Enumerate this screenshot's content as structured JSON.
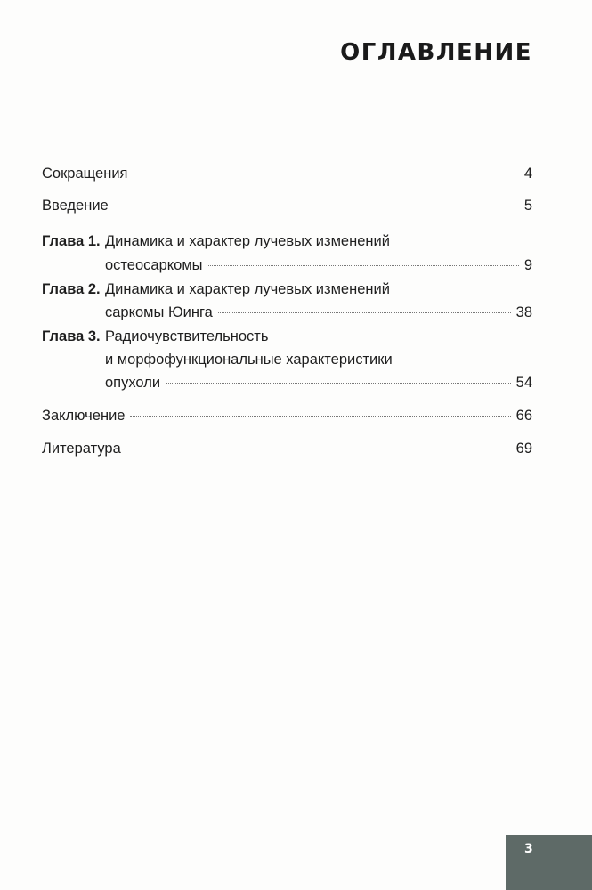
{
  "title": "ОГЛАВЛЕНИЕ",
  "entries": {
    "abbr": {
      "text": "Сокращения",
      "page": "4"
    },
    "intro": {
      "text": "Введение",
      "page": "5"
    },
    "ch1": {
      "label": "Глава 1.",
      "line1": "Динамика и характер лучевых изменений",
      "line2": "остеосаркомы",
      "page": "9"
    },
    "ch2": {
      "label": "Глава 2.",
      "line1": "Динамика и характер лучевых изменений",
      "line2": "саркомы Юинга",
      "page": "38"
    },
    "ch3": {
      "label": "Глава 3.",
      "line1": "Радиочувствительность",
      "line2": "и морфофункциональные характеристики",
      "line3": "опухоли",
      "page": "54"
    },
    "concl": {
      "text": "Заключение",
      "page": "66"
    },
    "lit": {
      "text": "Литература",
      "page": "69"
    }
  },
  "page_number": "3",
  "colors": {
    "page_tab": "#5e6a67"
  }
}
